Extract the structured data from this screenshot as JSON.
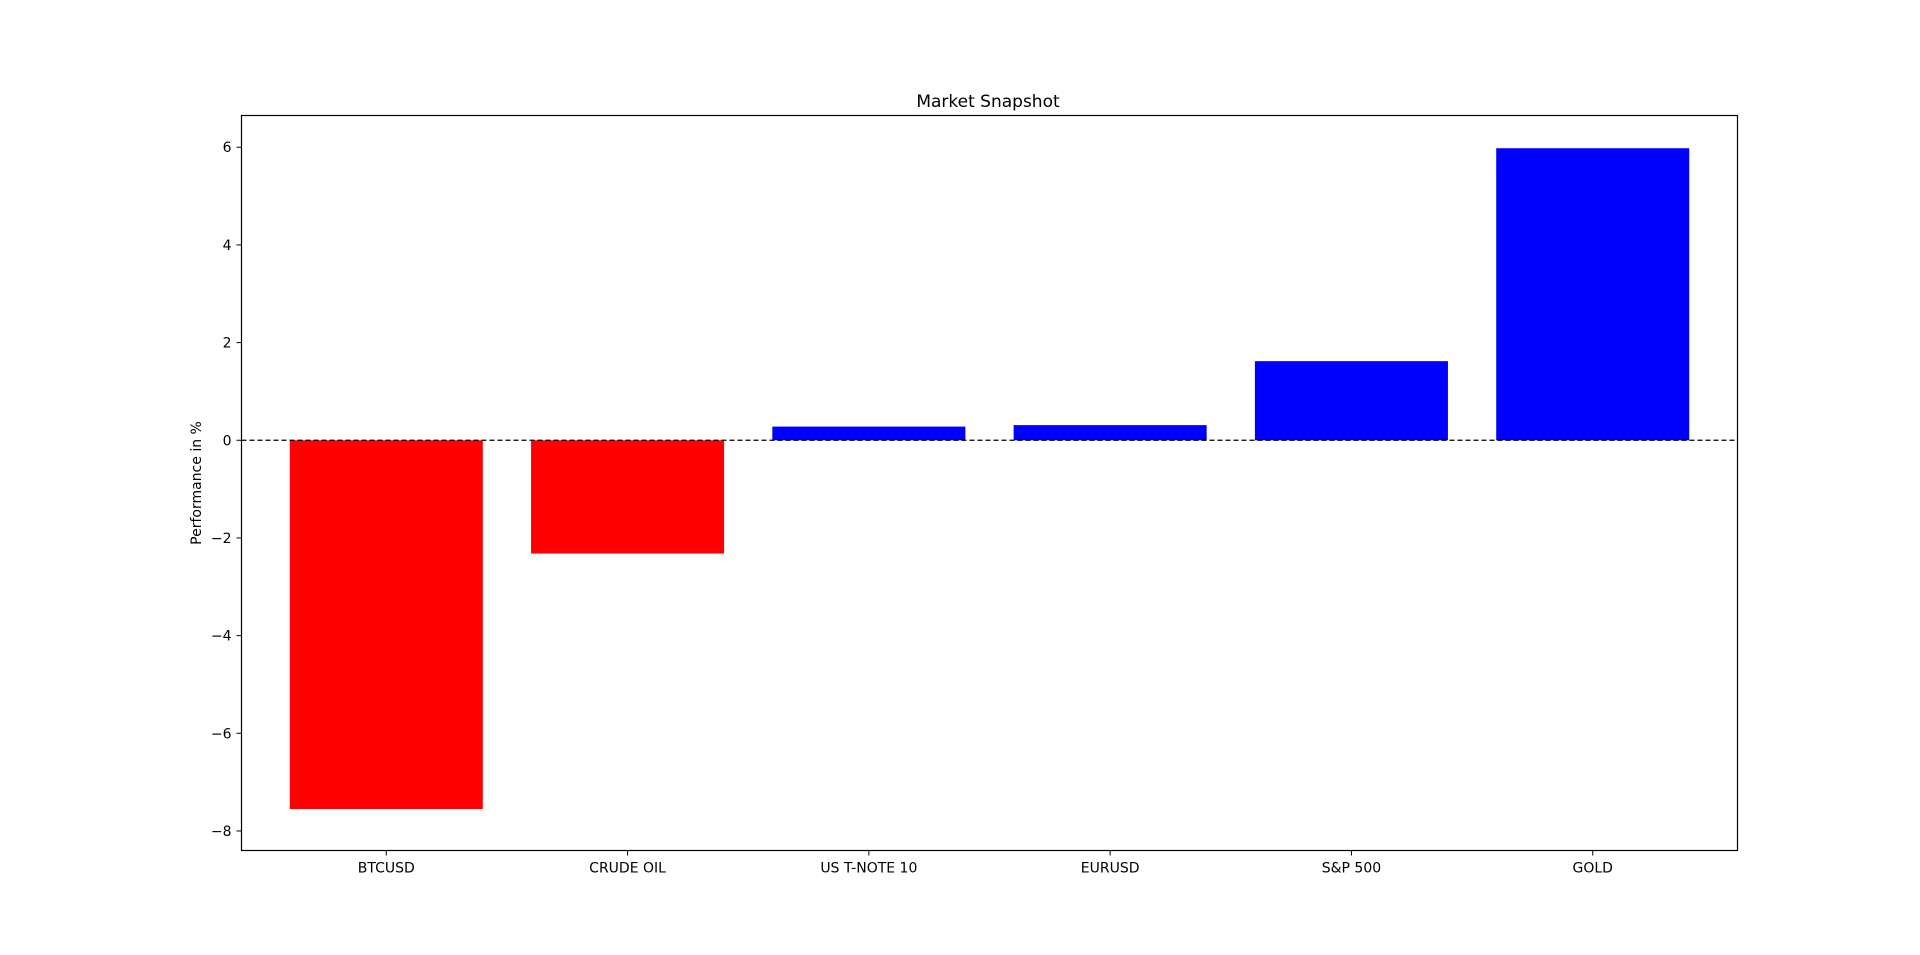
{
  "chart_data": {
    "type": "bar",
    "title": "Market Snapshot",
    "xlabel": "",
    "ylabel": "Performance in %",
    "categories": [
      "BTCUSD",
      "CRUDE OIL",
      "US T-NOTE 10",
      "EURUSD",
      "S&P 500",
      "GOLD"
    ],
    "values": [
      -7.55,
      -2.32,
      0.28,
      0.31,
      1.62,
      5.98
    ],
    "ylim": [
      -8.4,
      6.65
    ],
    "yticks": [
      -8,
      -6,
      -4,
      -2,
      0,
      2,
      4,
      6
    ],
    "ytick_labels": [
      "−8",
      "−6",
      "−4",
      "−2",
      "0",
      "2",
      "4",
      "6"
    ],
    "bar_colors": {
      "negative": "#ff0000",
      "positive": "#0000ff"
    },
    "zero_line": {
      "style": "dashed",
      "color": "#000000"
    },
    "grid": false,
    "legend": "none"
  }
}
